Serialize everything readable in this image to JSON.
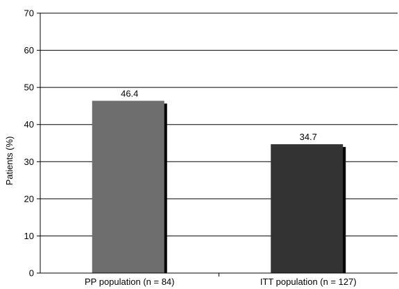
{
  "chart_data": {
    "type": "bar",
    "title": "",
    "xlabel": "",
    "ylabel": "Patients (%)",
    "ylim": [
      0,
      70
    ],
    "yticks": [
      0,
      10,
      20,
      30,
      40,
      50,
      60,
      70
    ],
    "grid": true,
    "legend": "none",
    "categories": [
      "PP population (n = 84)",
      "ITT population (n = 127)"
    ],
    "values": [
      46.4,
      34.7
    ],
    "data_labels": [
      "46.4",
      "34.7"
    ],
    "colors": [
      "#6e6e6e",
      "#333333"
    ]
  }
}
